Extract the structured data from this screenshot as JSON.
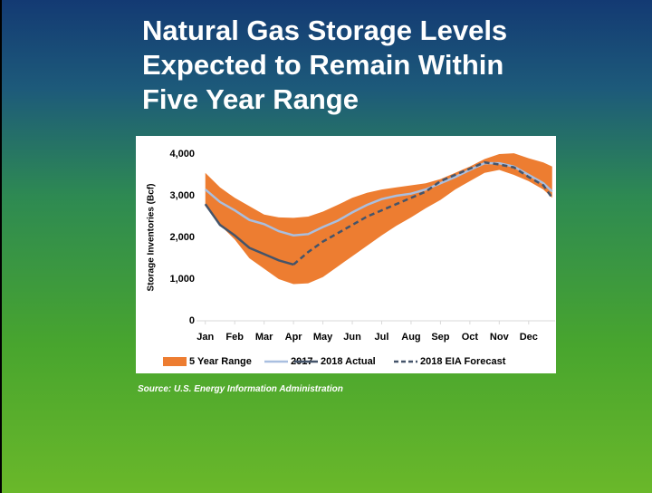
{
  "title_lines": [
    "Natural Gas Storage Levels",
    "Expected to Remain Within",
    "Five Year Range"
  ],
  "source": "Source: U.S. Energy Information Administration",
  "chart_data": {
    "type": "line",
    "ylabel": "Storage Inventories (Bcf)",
    "xlim": [
      -0.3,
      11.9
    ],
    "xticks": [
      {
        "value": 0,
        "label": "Jan"
      },
      {
        "value": 1,
        "label": "Feb"
      },
      {
        "value": 2,
        "label": "Mar"
      },
      {
        "value": 3,
        "label": "Apr"
      },
      {
        "value": 4,
        "label": "May"
      },
      {
        "value": 5,
        "label": "Jun"
      },
      {
        "value": 6,
        "label": "Jul"
      },
      {
        "value": 7,
        "label": "Aug"
      },
      {
        "value": 8,
        "label": "Sep"
      },
      {
        "value": 9,
        "label": "Oct"
      },
      {
        "value": 10,
        "label": "Nov"
      },
      {
        "value": 11,
        "label": "Dec"
      }
    ],
    "ylim": [
      0,
      4000
    ],
    "yticks": [
      0,
      {
        "value": 1000,
        "label": "1,000"
      },
      {
        "value": 2000,
        "label": "2,000"
      },
      {
        "value": 3000,
        "label": "3,000"
      },
      {
        "value": 4000,
        "label": "4,000"
      }
    ],
    "series": [
      {
        "name": "5 Year Range",
        "kind": "band",
        "color": "#ed7d31",
        "x": [
          0,
          0.5,
          1,
          1.5,
          2,
          2.5,
          3,
          3.5,
          4,
          4.5,
          5,
          5.5,
          6,
          6.5,
          7,
          7.5,
          8,
          8.5,
          9,
          9.5,
          10,
          10.5,
          11,
          11.5,
          11.8
        ],
        "upper": [
          3550,
          3200,
          2950,
          2750,
          2550,
          2480,
          2470,
          2500,
          2620,
          2780,
          2950,
          3070,
          3150,
          3200,
          3250,
          3300,
          3400,
          3550,
          3700,
          3880,
          4000,
          4020,
          3900,
          3800,
          3700
        ],
        "lower": [
          2750,
          2300,
          1950,
          1500,
          1250,
          1000,
          880,
          900,
          1050,
          1300,
          1550,
          1800,
          2050,
          2280,
          2480,
          2700,
          2900,
          3150,
          3350,
          3550,
          3620,
          3500,
          3350,
          3150,
          2950
        ]
      },
      {
        "name": "2017",
        "kind": "solid",
        "color": "#a9bfe0",
        "x": [
          0,
          0.5,
          1,
          1.5,
          2,
          2.5,
          3,
          3.5,
          4,
          4.5,
          5,
          5.5,
          6,
          6.5,
          7,
          7.5,
          8,
          8.5,
          9,
          9.5,
          10,
          10.5,
          11,
          11.5,
          11.8
        ],
        "values": [
          3150,
          2850,
          2650,
          2420,
          2320,
          2150,
          2050,
          2080,
          2250,
          2400,
          2600,
          2780,
          2920,
          3000,
          3050,
          3150,
          3300,
          3450,
          3620,
          3780,
          3780,
          3700,
          3500,
          3300,
          3100
        ]
      },
      {
        "name": "2018 Actual",
        "kind": "solid",
        "color": "#44546a",
        "x": [
          0,
          0.5,
          1,
          1.5,
          2,
          2.5,
          3
        ],
        "values": [
          2800,
          2300,
          2050,
          1750,
          1600,
          1450,
          1350
        ]
      },
      {
        "name": "2018 EIA Forecast",
        "kind": "dashed",
        "color": "#44546a",
        "x": [
          3,
          3.5,
          4,
          4.5,
          5,
          5.5,
          6,
          6.5,
          7,
          7.5,
          8,
          8.5,
          9,
          9.5,
          10,
          10.5,
          11,
          11.5,
          11.8
        ],
        "values": [
          1350,
          1650,
          1900,
          2100,
          2300,
          2500,
          2650,
          2800,
          2950,
          3100,
          3350,
          3500,
          3650,
          3800,
          3750,
          3680,
          3450,
          3250,
          2950
        ]
      }
    ]
  }
}
